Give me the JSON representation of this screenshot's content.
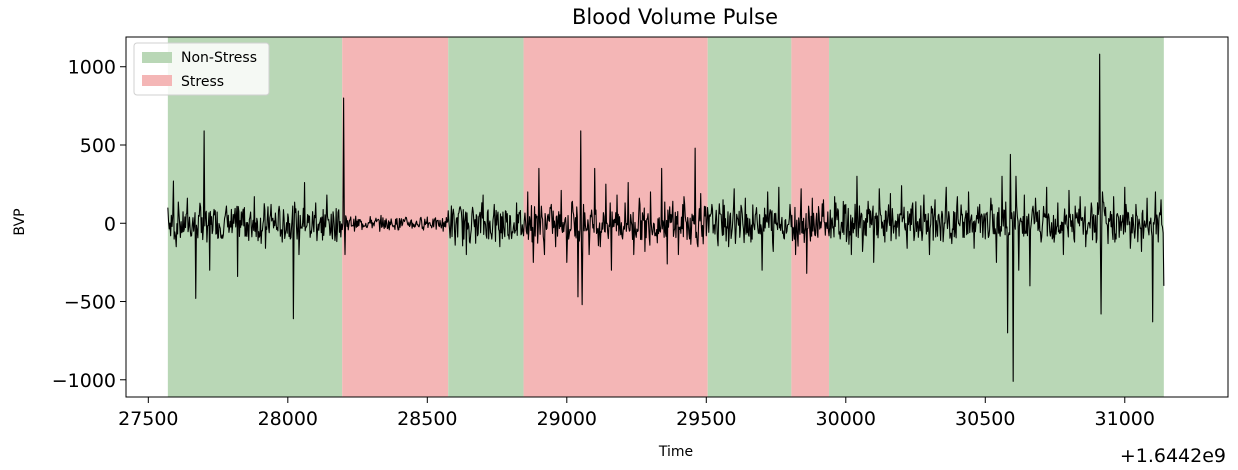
{
  "chart_data": {
    "type": "line",
    "title": "Blood Volume Pulse",
    "xlabel": "Time",
    "ylabel": "BVP",
    "x_offset_label": "+1.6442e9",
    "xlim": [
      27420,
      31370
    ],
    "ylim": [
      -1110,
      1190
    ],
    "x_ticks": [
      27500,
      28000,
      28500,
      29000,
      29500,
      30000,
      30500,
      31000
    ],
    "y_ticks": [
      1000,
      500,
      0,
      -500,
      -1000
    ],
    "y_tick_labels": [
      "1000",
      "500",
      "0",
      "−500",
      "−1000"
    ],
    "grid": false,
    "legend_position": "top-left",
    "legend": [
      {
        "name": "Non-Stress",
        "color": "#b9d7b6"
      },
      {
        "name": "Stress",
        "color": "#f4b6b6"
      }
    ],
    "line_color": "#000000",
    "data_x_range": [
      27570,
      31140
    ],
    "regions": [
      {
        "label": "Non-Stress",
        "start": 27570,
        "end": 28195
      },
      {
        "label": "Stress",
        "start": 28195,
        "end": 28575
      },
      {
        "label": "Non-Stress",
        "start": 28575,
        "end": 28845
      },
      {
        "label": "Stress",
        "start": 28845,
        "end": 29505
      },
      {
        "label": "Non-Stress",
        "start": 29505,
        "end": 29805
      },
      {
        "label": "Stress",
        "start": 29805,
        "end": 29940
      },
      {
        "label": "Non-Stress",
        "start": 29940,
        "end": 31140
      }
    ],
    "series": [
      {
        "values_description": "dense oscillating signal around 0",
        "points": [
          [
            27570,
            100
          ],
          [
            27580,
            -80
          ],
          [
            27590,
            270
          ],
          [
            27600,
            -150
          ],
          [
            27610,
            60
          ],
          [
            27620,
            -60
          ],
          [
            27640,
            160
          ],
          [
            27655,
            -80
          ],
          [
            27670,
            -480
          ],
          [
            27680,
            50
          ],
          [
            27690,
            -60
          ],
          [
            27700,
            590
          ],
          [
            27710,
            -120
          ],
          [
            27720,
            -300
          ],
          [
            27740,
            80
          ],
          [
            27760,
            -90
          ],
          [
            27780,
            110
          ],
          [
            27800,
            -60
          ],
          [
            27820,
            -340
          ],
          [
            27840,
            90
          ],
          [
            27860,
            -110
          ],
          [
            27880,
            170
          ],
          [
            27900,
            -80
          ],
          [
            27920,
            -160
          ],
          [
            27940,
            120
          ],
          [
            27960,
            -40
          ],
          [
            27980,
            -120
          ],
          [
            28000,
            60
          ],
          [
            28020,
            -610
          ],
          [
            28040,
            -200
          ],
          [
            28060,
            260
          ],
          [
            28080,
            -90
          ],
          [
            28100,
            130
          ],
          [
            28120,
            -60
          ],
          [
            28140,
            180
          ],
          [
            28160,
            -100
          ],
          [
            28180,
            70
          ],
          [
            28195,
            -40
          ],
          [
            28200,
            800
          ],
          [
            28205,
            -200
          ],
          [
            28210,
            30
          ],
          [
            28250,
            -20
          ],
          [
            28300,
            20
          ],
          [
            28350,
            -25
          ],
          [
            28400,
            30
          ],
          [
            28450,
            -20
          ],
          [
            28500,
            40
          ],
          [
            28550,
            -30
          ],
          [
            28575,
            80
          ],
          [
            28600,
            -140
          ],
          [
            28620,
            90
          ],
          [
            28640,
            -200
          ],
          [
            28660,
            60
          ],
          [
            28680,
            -80
          ],
          [
            28700,
            180
          ],
          [
            28720,
            -100
          ],
          [
            28740,
            120
          ],
          [
            28760,
            -150
          ],
          [
            28780,
            80
          ],
          [
            28800,
            -60
          ],
          [
            28820,
            130
          ],
          [
            28845,
            -80
          ],
          [
            28860,
            200
          ],
          [
            28880,
            -250
          ],
          [
            28900,
            350
          ],
          [
            28920,
            -200
          ],
          [
            28940,
            100
          ],
          [
            28960,
            -150
          ],
          [
            28980,
            210
          ],
          [
            29000,
            -250
          ],
          [
            29020,
            140
          ],
          [
            29040,
            -470
          ],
          [
            29050,
            590
          ],
          [
            29055,
            -520
          ],
          [
            29060,
            120
          ],
          [
            29080,
            -200
          ],
          [
            29100,
            350
          ],
          [
            29120,
            -150
          ],
          [
            29140,
            250
          ],
          [
            29160,
            -300
          ],
          [
            29180,
            180
          ],
          [
            29200,
            -100
          ],
          [
            29220,
            260
          ],
          [
            29240,
            -200
          ],
          [
            29260,
            160
          ],
          [
            29280,
            -180
          ],
          [
            29300,
            200
          ],
          [
            29320,
            -80
          ],
          [
            29340,
            350
          ],
          [
            29360,
            -260
          ],
          [
            29380,
            140
          ],
          [
            29400,
            -200
          ],
          [
            29420,
            170
          ],
          [
            29440,
            -100
          ],
          [
            29460,
            480
          ],
          [
            29470,
            -150
          ],
          [
            29480,
            190
          ],
          [
            29500,
            -80
          ],
          [
            29520,
            120
          ],
          [
            29540,
            -100
          ],
          [
            29560,
            150
          ],
          [
            29580,
            -150
          ],
          [
            29600,
            220
          ],
          [
            29620,
            -90
          ],
          [
            29640,
            160
          ],
          [
            29660,
            -120
          ],
          [
            29680,
            100
          ],
          [
            29700,
            -300
          ],
          [
            29720,
            200
          ],
          [
            29740,
            -180
          ],
          [
            29760,
            230
          ],
          [
            29780,
            -100
          ],
          [
            29800,
            120
          ],
          [
            29820,
            -200
          ],
          [
            29840,
            220
          ],
          [
            29860,
            -320
          ],
          [
            29880,
            160
          ],
          [
            29900,
            -90
          ],
          [
            29920,
            150
          ],
          [
            29940,
            -80
          ],
          [
            29960,
            170
          ],
          [
            29980,
            -100
          ],
          [
            30000,
            120
          ],
          [
            30020,
            -200
          ],
          [
            30040,
            300
          ],
          [
            30060,
            -180
          ],
          [
            30080,
            140
          ],
          [
            30100,
            -250
          ],
          [
            30120,
            220
          ],
          [
            30140,
            -120
          ],
          [
            30160,
            190
          ],
          [
            30180,
            -100
          ],
          [
            30200,
            240
          ],
          [
            30220,
            -160
          ],
          [
            30240,
            130
          ],
          [
            30260,
            -90
          ],
          [
            30280,
            180
          ],
          [
            30300,
            -200
          ],
          [
            30320,
            150
          ],
          [
            30340,
            -110
          ],
          [
            30360,
            230
          ],
          [
            30380,
            -130
          ],
          [
            30400,
            170
          ],
          [
            30420,
            -90
          ],
          [
            30440,
            200
          ],
          [
            30460,
            -160
          ],
          [
            30480,
            120
          ],
          [
            30500,
            -100
          ],
          [
            30520,
            160
          ],
          [
            30540,
            -250
          ],
          [
            30560,
            300
          ],
          [
            30580,
            -700
          ],
          [
            30590,
            440
          ],
          [
            30600,
            -1010
          ],
          [
            30610,
            300
          ],
          [
            30620,
            -300
          ],
          [
            30640,
            180
          ],
          [
            30660,
            -400
          ],
          [
            30680,
            160
          ],
          [
            30700,
            -120
          ],
          [
            30720,
            230
          ],
          [
            30740,
            -100
          ],
          [
            30760,
            130
          ],
          [
            30780,
            -200
          ],
          [
            30800,
            210
          ],
          [
            30820,
            -120
          ],
          [
            30840,
            170
          ],
          [
            30860,
            -150
          ],
          [
            30880,
            130
          ],
          [
            30900,
            -100
          ],
          [
            30910,
            1080
          ],
          [
            30915,
            -580
          ],
          [
            30920,
            200
          ],
          [
            30940,
            -130
          ],
          [
            30960,
            170
          ],
          [
            30980,
            -90
          ],
          [
            31000,
            230
          ],
          [
            31020,
            -160
          ],
          [
            31040,
            120
          ],
          [
            31060,
            -180
          ],
          [
            31080,
            160
          ],
          [
            31100,
            -630
          ],
          [
            31110,
            200
          ],
          [
            31120,
            -120
          ],
          [
            31130,
            150
          ],
          [
            31140,
            -400
          ]
        ]
      }
    ]
  }
}
